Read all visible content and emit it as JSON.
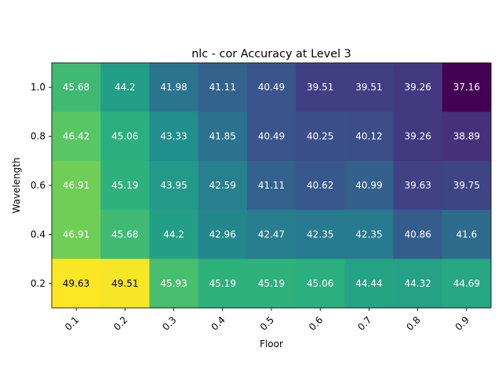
{
  "chart_data": {
    "type": "heatmap",
    "title": "nlc - cor Accuracy at Level 3",
    "xlabel": "Floor",
    "ylabel": "Wavelength",
    "x_categories": [
      "0.1",
      "0.2",
      "0.3",
      "0.4",
      "0.5",
      "0.6",
      "0.7",
      "0.8",
      "0.9"
    ],
    "y_categories": [
      "1.0",
      "0.8",
      "0.6",
      "0.4",
      "0.2"
    ],
    "values": [
      [
        45.68,
        44.2,
        41.98,
        41.11,
        40.49,
        39.51,
        39.51,
        39.26,
        37.16
      ],
      [
        46.42,
        45.06,
        43.33,
        41.85,
        40.49,
        40.25,
        40.12,
        39.26,
        38.89
      ],
      [
        46.91,
        45.19,
        43.95,
        42.59,
        41.11,
        40.62,
        40.99,
        39.63,
        39.75
      ],
      [
        46.91,
        45.68,
        44.2,
        42.96,
        42.47,
        42.35,
        42.35,
        40.86,
        41.6
      ],
      [
        49.63,
        49.51,
        45.93,
        45.19,
        45.19,
        45.06,
        44.44,
        44.32,
        44.69
      ]
    ],
    "colormap": "viridis",
    "color_range": [
      37.16,
      49.63
    ],
    "grid": false,
    "legend": "none"
  }
}
